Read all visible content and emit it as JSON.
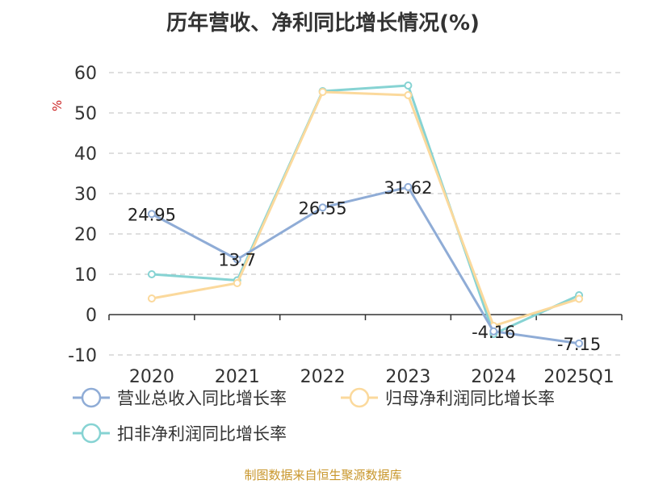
{
  "chart_data": {
    "type": "line",
    "title": "历年营收、净利同比增长情况(%)",
    "ylabel": "%",
    "categories": [
      "2020",
      "2021",
      "2022",
      "2023",
      "2024",
      "2025Q1"
    ],
    "ylim": [
      -10,
      60
    ],
    "yticks": [
      -10,
      0,
      10,
      20,
      30,
      40,
      50,
      60
    ],
    "grid": true,
    "legend_position": "bottom",
    "series": [
      {
        "name": "营业总收入同比增长率",
        "color": "#8facd6",
        "values": [
          24.95,
          13.7,
          26.55,
          31.62,
          -4.16,
          -7.15
        ],
        "labels": [
          "24.95",
          "13.7",
          "26.55",
          "31.62",
          "-4.16",
          "-7.15"
        ]
      },
      {
        "name": "归母净利润同比增长率",
        "color": "#fbd99c",
        "values": [
          4.0,
          7.8,
          55.2,
          54.4,
          -2.8,
          3.9
        ]
      },
      {
        "name": "扣非净利润同比增长率",
        "color": "#86d3d3",
        "values": [
          10.0,
          8.5,
          55.4,
          56.8,
          -4.8,
          4.8
        ]
      }
    ]
  },
  "source_text": "制图数据来自恒生聚源数据库"
}
